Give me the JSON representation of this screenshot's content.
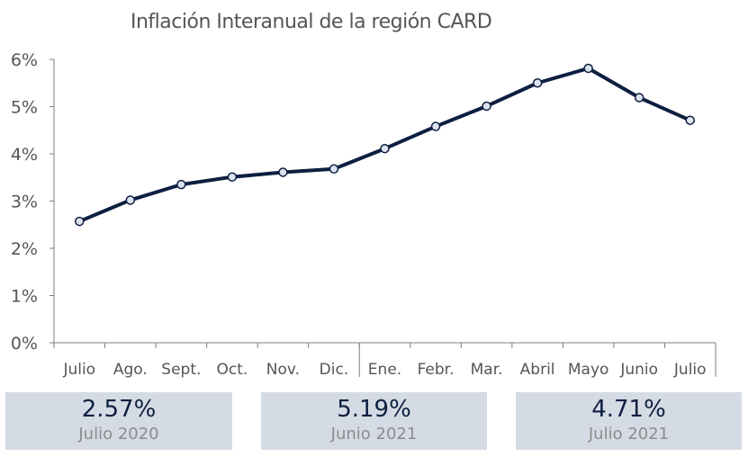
{
  "chart_data": {
    "type": "line",
    "title": "Inflación Interanual de la región CARD",
    "categories": [
      "Julio",
      "Ago.",
      "Sept.",
      "Oct.",
      "Nov.",
      "Dic.",
      "Ene.",
      "Febr.",
      "Mar.",
      "Abril",
      "Mayo",
      "Junio",
      "Julio"
    ],
    "values": [
      2.57,
      3.02,
      3.35,
      3.51,
      3.61,
      3.68,
      4.11,
      4.58,
      5.01,
      5.5,
      5.81,
      5.19,
      4.71
    ],
    "ylim": [
      0,
      6
    ],
    "yticks": [
      "0%",
      "1%",
      "2%",
      "3%",
      "4%",
      "5%",
      "6%"
    ],
    "grid": false,
    "year_separator_after_index": 5,
    "colors": {
      "line": "#0d1f40",
      "marker_fill": "#dce3ee",
      "axis": "#7f7f7f"
    }
  },
  "summary": [
    {
      "value": "2.57%",
      "period": "Julio 2020"
    },
    {
      "value": "5.19%",
      "period": "Junio 2021"
    },
    {
      "value": "4.71%",
      "period": "Julio 2021"
    }
  ]
}
